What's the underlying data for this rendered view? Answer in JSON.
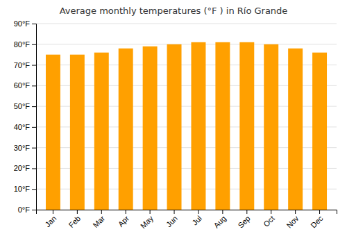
{
  "chart_data": {
    "type": "bar",
    "title": "Average monthly temperatures (°F ) in Río Grande",
    "categories": [
      "Jan",
      "Feb",
      "Mar",
      "Apr",
      "May",
      "Jun",
      "Jul",
      "Aug",
      "Sep",
      "Oct",
      "Nov",
      "Dec"
    ],
    "values": [
      75,
      75,
      76,
      78,
      79,
      80,
      81,
      81,
      81,
      80,
      78,
      76
    ],
    "color": "#FFA000",
    "ylim": [
      0,
      90
    ],
    "yticks": [
      {
        "value": 0,
        "label": "0°F"
      },
      {
        "value": 10,
        "label": "10°F"
      },
      {
        "value": 20,
        "label": "20°F"
      },
      {
        "value": 30,
        "label": "30°F"
      },
      {
        "value": 40,
        "label": "40°F"
      },
      {
        "value": 50,
        "label": "50°F"
      },
      {
        "value": 60,
        "label": "60°F"
      },
      {
        "value": 70,
        "label": "70°F"
      },
      {
        "value": 80,
        "label": "80°F"
      },
      {
        "value": 90,
        "label": "90°F"
      }
    ],
    "grid": true
  }
}
